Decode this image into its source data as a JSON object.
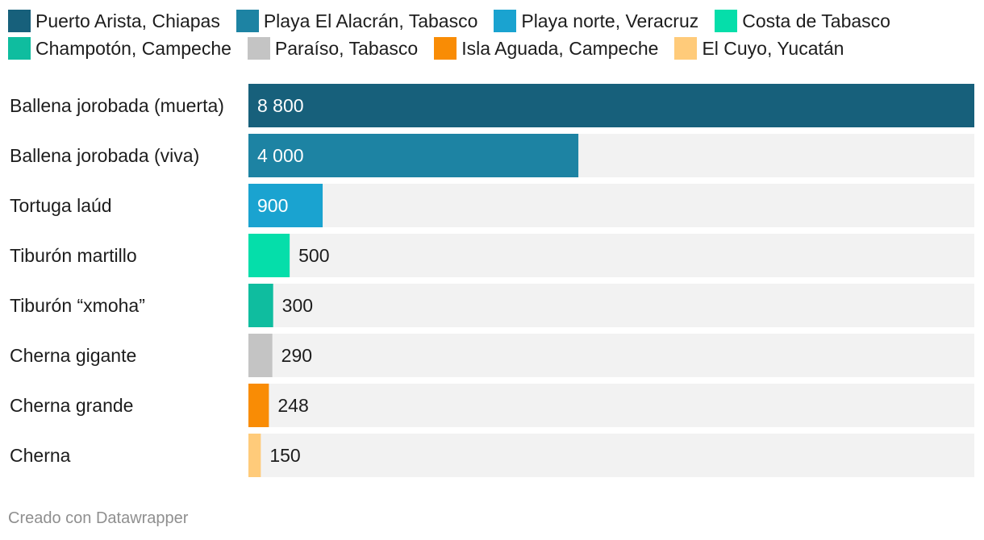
{
  "chart_data": {
    "type": "bar",
    "orientation": "horizontal",
    "categories": [
      "Ballena jorobada (muerta)",
      "Ballena jorobada (viva)",
      "Tortuga laúd",
      "Tiburón martillo",
      "Tiburón “xmoha”",
      "Cherna gigante",
      "Cherna grande",
      "Cherna"
    ],
    "values": [
      8800,
      4000,
      900,
      500,
      300,
      290,
      248,
      150
    ],
    "value_labels": [
      "8 800",
      "4 000",
      "900",
      "500",
      "300",
      "290",
      "248",
      "150"
    ],
    "legend": [
      {
        "label": "Puerto Arista, Chiapas",
        "color": "#17607b"
      },
      {
        "label": "Playa El Alacrán, Tabasco",
        "color": "#1d83a3"
      },
      {
        "label": "Playa norte, Veracruz",
        "color": "#1aa3d0"
      },
      {
        "label": "Costa de Tabasco",
        "color": "#05deaa"
      },
      {
        "label": "Champotón, Campeche",
        "color": "#0fbd9f"
      },
      {
        "label": "Paraíso, Tabasco",
        "color": "#c4c4c4"
      },
      {
        "label": "Isla Aguada, Campeche",
        "color": "#f98c05"
      },
      {
        "label": "El Cuyo, Yucatán",
        "color": "#ffcb7a"
      }
    ],
    "xlim": [
      0,
      8800
    ],
    "background_bar_color": "#f2f2f2",
    "legend_position": "top",
    "grid": false
  },
  "footer": {
    "credit": "Creado con Datawrapper"
  }
}
